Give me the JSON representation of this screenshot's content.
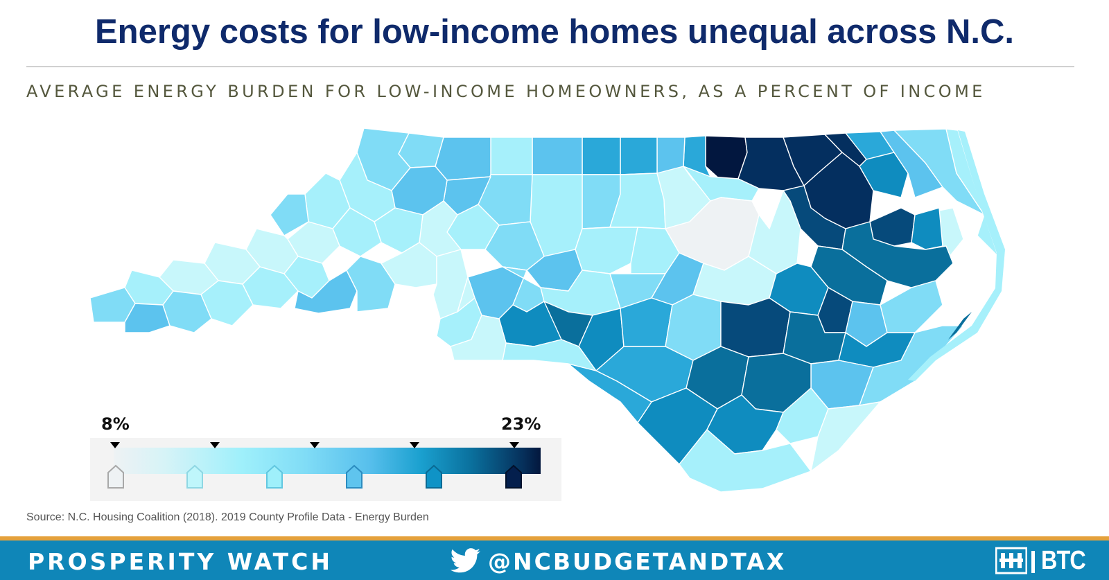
{
  "header": {
    "title": "Energy costs for low-income homes unequal across N.C.",
    "subtitle": "AVERAGE ENERGY BURDEN FOR LOW-INCOME HOMEOWNERS, AS A PERCENT OF INCOME"
  },
  "legend": {
    "min_label": "8%",
    "max_label": "23%",
    "min_value": 8,
    "max_value": 23,
    "colors": [
      "#eef2f4",
      "#bff6fb",
      "#9ff0fb",
      "#5fc4ee",
      "#0f93c6",
      "#041f4d"
    ]
  },
  "palette": {
    "c0": "#eef2f4",
    "c1": "#c8f7fb",
    "c2": "#a6f0fb",
    "c3": "#80dcf6",
    "c4": "#5cc3ee",
    "c5": "#2aa8d9",
    "c6": "#0f8cbf",
    "c7": "#0a6f9c",
    "c8": "#064a7b",
    "c9": "#042f5f",
    "c10": "#02173f"
  },
  "source": "Source: N.C. Housing Coalition (2018). 2019 County Profile Data - Energy Burden",
  "footer": {
    "left": "PROSPERITY WATCH",
    "handle": "@NCBUDGETANDTAX",
    "logo_text": "BTC",
    "accent": "#e5a13b",
    "bar_color": "#0f86b8"
  }
}
